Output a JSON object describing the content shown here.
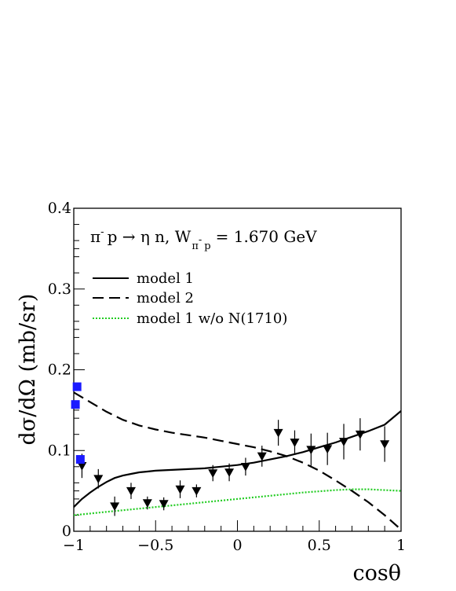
{
  "chart_data": {
    "type": "line",
    "xlabel": "cosθ",
    "ylabel": "dσ/dΩ (mb/sr)",
    "xlim": [
      -1,
      1
    ],
    "ylim": [
      0,
      0.4
    ],
    "x_ticks": [
      "−1",
      "−0.5",
      "0",
      "0.5",
      "1"
    ],
    "y_ticks": [
      "0",
      "0.1",
      "0.2",
      "0.3",
      "0.4"
    ],
    "grid": false,
    "legend_position": "upper-left",
    "annotation": {
      "pi": "π",
      "pi_sup": "-",
      "reaction": "p → η n,   W",
      "w_sub": "π",
      "w_sub_sup": "-",
      "w_sub_p": "p",
      "energy": "= 1.670 GeV"
    },
    "series": [
      {
        "name": "model 1",
        "style": "solid",
        "color": "#000000",
        "x": [
          -1.0,
          -0.95,
          -0.9,
          -0.85,
          -0.8,
          -0.75,
          -0.7,
          -0.65,
          -0.6,
          -0.55,
          -0.5,
          -0.45,
          -0.4,
          -0.3,
          -0.2,
          -0.1,
          0.0,
          0.1,
          0.2,
          0.3,
          0.4,
          0.5,
          0.6,
          0.7,
          0.8,
          0.9,
          1.0
        ],
        "y": [
          0.03,
          0.04,
          0.048,
          0.055,
          0.061,
          0.066,
          0.069,
          0.071,
          0.073,
          0.074,
          0.075,
          0.0755,
          0.076,
          0.077,
          0.078,
          0.08,
          0.082,
          0.085,
          0.089,
          0.093,
          0.098,
          0.104,
          0.11,
          0.117,
          0.124,
          0.132,
          0.149
        ]
      },
      {
        "name": "model 2",
        "style": "dashed",
        "color": "#000000",
        "x": [
          -1.0,
          -0.9,
          -0.8,
          -0.7,
          -0.6,
          -0.5,
          -0.4,
          -0.3,
          -0.2,
          -0.1,
          0.0,
          0.1,
          0.2,
          0.3,
          0.4,
          0.5,
          0.6,
          0.7,
          0.8,
          0.9,
          0.95,
          1.0
        ],
        "y": [
          0.172,
          0.16,
          0.148,
          0.138,
          0.131,
          0.126,
          0.122,
          0.119,
          0.116,
          0.112,
          0.108,
          0.104,
          0.099,
          0.093,
          0.085,
          0.075,
          0.063,
          0.05,
          0.036,
          0.02,
          0.011,
          0.002
        ]
      },
      {
        "name": "model 1 w/o N(1710)",
        "style": "dotted",
        "color": "#22cc22",
        "x": [
          -1.0,
          -0.8,
          -0.6,
          -0.4,
          -0.2,
          0.0,
          0.2,
          0.4,
          0.6,
          0.7,
          0.8,
          0.9,
          1.0
        ],
        "y": [
          0.02,
          0.024,
          0.028,
          0.032,
          0.036,
          0.04,
          0.044,
          0.048,
          0.051,
          0.052,
          0.052,
          0.051,
          0.05
        ]
      }
    ],
    "data_triangles": {
      "color": "#000000",
      "points": [
        {
          "x": -0.95,
          "y": 0.081,
          "err": 0.015
        },
        {
          "x": -0.85,
          "y": 0.065,
          "err": 0.012
        },
        {
          "x": -0.75,
          "y": 0.031,
          "err": 0.012
        },
        {
          "x": -0.65,
          "y": 0.05,
          "err": 0.01
        },
        {
          "x": -0.55,
          "y": 0.035,
          "err": 0.008
        },
        {
          "x": -0.45,
          "y": 0.034,
          "err": 0.008
        },
        {
          "x": -0.35,
          "y": 0.052,
          "err": 0.011
        },
        {
          "x": -0.25,
          "y": 0.05,
          "err": 0.008
        },
        {
          "x": -0.15,
          "y": 0.072,
          "err": 0.01
        },
        {
          "x": -0.05,
          "y": 0.073,
          "err": 0.011
        },
        {
          "x": 0.05,
          "y": 0.08,
          "err": 0.011
        },
        {
          "x": 0.15,
          "y": 0.093,
          "err": 0.013
        },
        {
          "x": 0.25,
          "y": 0.122,
          "err": 0.016
        },
        {
          "x": 0.35,
          "y": 0.11,
          "err": 0.015
        },
        {
          "x": 0.45,
          "y": 0.101,
          "err": 0.02
        },
        {
          "x": 0.55,
          "y": 0.102,
          "err": 0.02
        },
        {
          "x": 0.65,
          "y": 0.111,
          "err": 0.022
        },
        {
          "x": 0.75,
          "y": 0.12,
          "err": 0.02
        },
        {
          "x": 0.9,
          "y": 0.108,
          "err": 0.022
        }
      ]
    },
    "data_squares": {
      "color": "#1a1aff",
      "points": [
        {
          "x": -0.99,
          "y": 0.157
        },
        {
          "x": -0.98,
          "y": 0.179
        },
        {
          "x": -0.96,
          "y": 0.089
        }
      ]
    }
  }
}
